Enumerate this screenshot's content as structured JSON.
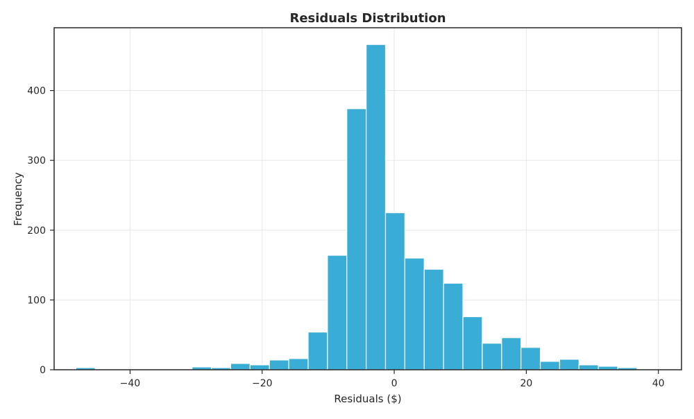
{
  "chart_data": {
    "type": "bar",
    "title": "Residuals Distribution",
    "xlabel": "Residuals ($)",
    "ylabel": "Frequency",
    "xlim": [
      -51.5,
      43.5
    ],
    "ylim": [
      0,
      490
    ],
    "xticks": [
      -40,
      -20,
      0,
      20,
      40
    ],
    "xtick_labels": [
      "−40",
      "−20",
      "0",
      "20",
      "40"
    ],
    "yticks": [
      0,
      100,
      200,
      300,
      400
    ],
    "ytick_labels": [
      "0",
      "100",
      "200",
      "300",
      "400"
    ],
    "grid": true,
    "bin_width": 2.93,
    "bins": [
      {
        "x0": -48.2,
        "count": 3
      },
      {
        "x0": -45.27,
        "count": 0
      },
      {
        "x0": -42.34,
        "count": 0
      },
      {
        "x0": -39.41,
        "count": 1
      },
      {
        "x0": -36.48,
        "count": 0
      },
      {
        "x0": -33.55,
        "count": 0
      },
      {
        "x0": -30.62,
        "count": 4
      },
      {
        "x0": -27.69,
        "count": 3
      },
      {
        "x0": -24.76,
        "count": 9
      },
      {
        "x0": -21.83,
        "count": 7
      },
      {
        "x0": -18.9,
        "count": 14
      },
      {
        "x0": -15.97,
        "count": 16
      },
      {
        "x0": -13.04,
        "count": 54
      },
      {
        "x0": -10.11,
        "count": 164
      },
      {
        "x0": -7.18,
        "count": 374
      },
      {
        "x0": -4.25,
        "count": 466
      },
      {
        "x0": -1.32,
        "count": 225
      },
      {
        "x0": 1.61,
        "count": 160
      },
      {
        "x0": 4.54,
        "count": 144
      },
      {
        "x0": 7.47,
        "count": 124
      },
      {
        "x0": 10.4,
        "count": 76
      },
      {
        "x0": 13.33,
        "count": 38
      },
      {
        "x0": 16.26,
        "count": 46
      },
      {
        "x0": 19.19,
        "count": 32
      },
      {
        "x0": 22.12,
        "count": 12
      },
      {
        "x0": 25.05,
        "count": 15
      },
      {
        "x0": 27.98,
        "count": 7
      },
      {
        "x0": 30.91,
        "count": 5
      },
      {
        "x0": 33.84,
        "count": 3
      },
      {
        "x0": 36.77,
        "count": 1
      }
    ],
    "colors": {
      "bar_fill": "#3aadd6",
      "bar_edge": "#ffffff",
      "grid": "#e6e6e6",
      "axis": "#262626"
    }
  }
}
